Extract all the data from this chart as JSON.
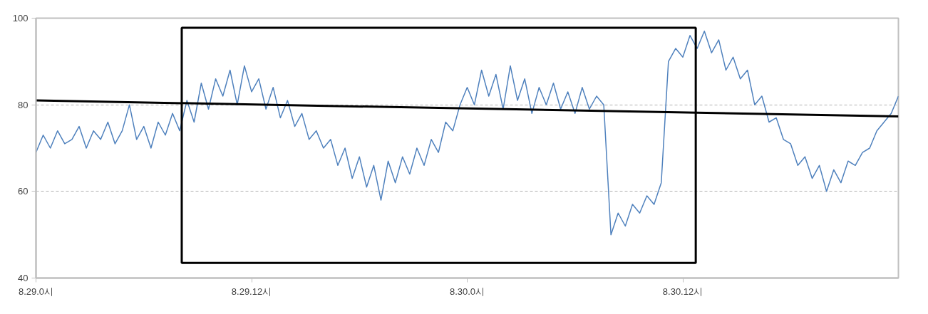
{
  "chart_data": {
    "type": "line",
    "ylim": [
      40,
      100
    ],
    "yticks": [
      40,
      60,
      80,
      100
    ],
    "grid": "y",
    "categories": [
      "8.29.0시",
      null,
      null,
      null,
      null,
      null,
      null,
      null,
      null,
      null,
      null,
      null,
      null,
      null,
      null,
      null,
      null,
      null,
      null,
      null,
      null,
      null,
      null,
      null,
      null,
      null,
      null,
      null,
      null,
      null,
      "8.29.12시",
      null,
      null,
      null,
      null,
      null,
      null,
      null,
      null,
      null,
      null,
      null,
      null,
      null,
      null,
      null,
      null,
      null,
      null,
      null,
      null,
      null,
      null,
      null,
      null,
      null,
      null,
      null,
      null,
      null,
      "8.30.0시",
      null,
      null,
      null,
      null,
      null,
      null,
      null,
      null,
      null,
      null,
      null,
      null,
      null,
      null,
      null,
      null,
      null,
      null,
      null,
      null,
      null,
      null,
      null,
      null,
      null,
      null,
      null,
      null,
      null,
      "8.30.12시",
      null,
      null,
      null,
      null,
      null,
      null,
      null,
      null,
      null,
      null,
      null,
      null,
      null,
      null,
      null,
      null,
      null,
      null,
      null,
      null,
      null,
      null,
      null,
      null,
      null,
      null,
      null,
      null,
      null,
      null
    ],
    "series": [
      {
        "color": "#4f81bd",
        "values": [
          69,
          73,
          70,
          74,
          71,
          72,
          75,
          70,
          74,
          72,
          76,
          71,
          74,
          80,
          72,
          75,
          70,
          76,
          73,
          78,
          74,
          81,
          76,
          85,
          79,
          86,
          82,
          88,
          80,
          89,
          83,
          86,
          79,
          84,
          77,
          81,
          75,
          78,
          72,
          74,
          70,
          72,
          66,
          70,
          63,
          68,
          61,
          66,
          58,
          67,
          62,
          68,
          64,
          70,
          66,
          72,
          69,
          76,
          74,
          80,
          84,
          80,
          88,
          82,
          87,
          79,
          89,
          81,
          86,
          78,
          84,
          80,
          85,
          79,
          83,
          78,
          84,
          79,
          82,
          80,
          50,
          55,
          52,
          57,
          55,
          59,
          57,
          62,
          90,
          93,
          91,
          96,
          93,
          97,
          92,
          95,
          88,
          91,
          86,
          88,
          80,
          82,
          76,
          77,
          72,
          71,
          66,
          68,
          63,
          66,
          60,
          65,
          62,
          67,
          66,
          69,
          70,
          74,
          76,
          78,
          82
        ]
      },
      {
        "type": "line",
        "color": "#000000",
        "values": [
          81.0,
          null,
          null,
          null,
          null,
          null,
          null,
          null,
          null,
          null,
          null,
          null,
          null,
          null,
          null,
          null,
          null,
          null,
          null,
          null,
          null,
          null,
          null,
          null,
          null,
          null,
          null,
          null,
          null,
          null,
          null,
          null,
          null,
          null,
          null,
          null,
          null,
          null,
          null,
          null,
          null,
          null,
          null,
          null,
          null,
          null,
          null,
          null,
          null,
          null,
          null,
          null,
          null,
          null,
          null,
          null,
          null,
          null,
          null,
          null,
          null,
          null,
          null,
          null,
          null,
          null,
          null,
          null,
          null,
          null,
          null,
          null,
          null,
          null,
          null,
          null,
          null,
          null,
          null,
          null,
          null,
          null,
          null,
          null,
          null,
          null,
          null,
          null,
          null,
          null,
          null,
          null,
          null,
          null,
          null,
          null,
          null,
          null,
          null,
          null,
          null,
          null,
          null,
          null,
          null,
          null,
          null,
          null,
          null,
          null,
          null,
          null,
          null,
          null,
          null,
          null,
          null,
          null,
          null,
          null,
          77.3
        ]
      }
    ]
  }
}
